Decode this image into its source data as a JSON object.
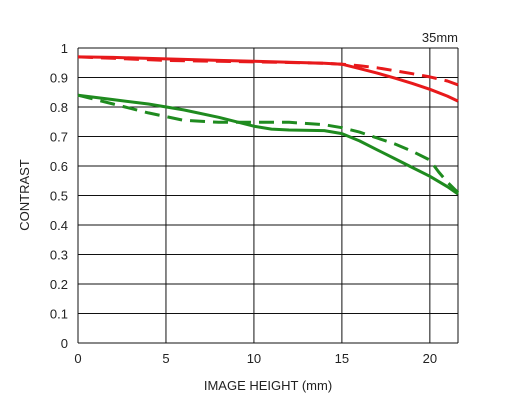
{
  "chart_data": {
    "type": "line",
    "title": "",
    "annotation": "35mm",
    "xlabel": "IMAGE HEIGHT (mm)",
    "ylabel": "CONTRAST",
    "xlim": [
      0,
      21.6
    ],
    "ylim": [
      0,
      1
    ],
    "x_ticks": [
      0,
      5,
      10,
      15,
      20
    ],
    "x_tick_labels": [
      "0",
      "5",
      "10",
      "15",
      "20"
    ],
    "y_ticks": [
      0,
      0.1,
      0.2,
      0.3,
      0.4,
      0.5,
      0.6,
      0.7,
      0.8,
      0.9,
      1
    ],
    "y_tick_labels": [
      "0",
      "0.1",
      "0.2",
      "0.3",
      "0.4",
      "0.5",
      "0.6",
      "0.7",
      "0.8",
      "0.9",
      "1"
    ],
    "grid": true,
    "legend": "none",
    "series": [
      {
        "color": "#e8191b",
        "dash": "solid",
        "x": [
          0,
          2,
          5,
          8,
          10,
          12,
          14,
          15,
          16,
          17,
          18,
          19,
          20,
          21,
          21.6
        ],
        "y": [
          0.97,
          0.968,
          0.963,
          0.958,
          0.955,
          0.952,
          0.948,
          0.945,
          0.93,
          0.915,
          0.898,
          0.88,
          0.86,
          0.837,
          0.82
        ]
      },
      {
        "color": "#e8191b",
        "dash": "dashed",
        "x": [
          0,
          2,
          5,
          8,
          10,
          12,
          14,
          15,
          16,
          17,
          18,
          19,
          20,
          21,
          21.6
        ],
        "y": [
          0.97,
          0.965,
          0.958,
          0.955,
          0.953,
          0.951,
          0.948,
          0.945,
          0.94,
          0.933,
          0.923,
          0.913,
          0.902,
          0.888,
          0.875
        ]
      },
      {
        "color": "#1f8b1f",
        "dash": "solid",
        "x": [
          0,
          2,
          4,
          6,
          8,
          10,
          11,
          12,
          14,
          15,
          16,
          17,
          18,
          19,
          20,
          21,
          21.6
        ],
        "y": [
          0.84,
          0.825,
          0.81,
          0.79,
          0.765,
          0.735,
          0.725,
          0.722,
          0.72,
          0.71,
          0.685,
          0.655,
          0.625,
          0.595,
          0.565,
          0.53,
          0.505
        ]
      },
      {
        "color": "#1f8b1f",
        "dash": "dashed",
        "x": [
          0,
          2,
          4,
          6,
          8,
          10,
          12,
          14,
          15,
          16,
          17,
          18,
          19,
          20,
          20.5,
          21,
          21.6
        ],
        "y": [
          0.84,
          0.81,
          0.78,
          0.755,
          0.748,
          0.748,
          0.748,
          0.74,
          0.73,
          0.715,
          0.695,
          0.675,
          0.65,
          0.62,
          0.58,
          0.545,
          0.51
        ]
      }
    ]
  }
}
